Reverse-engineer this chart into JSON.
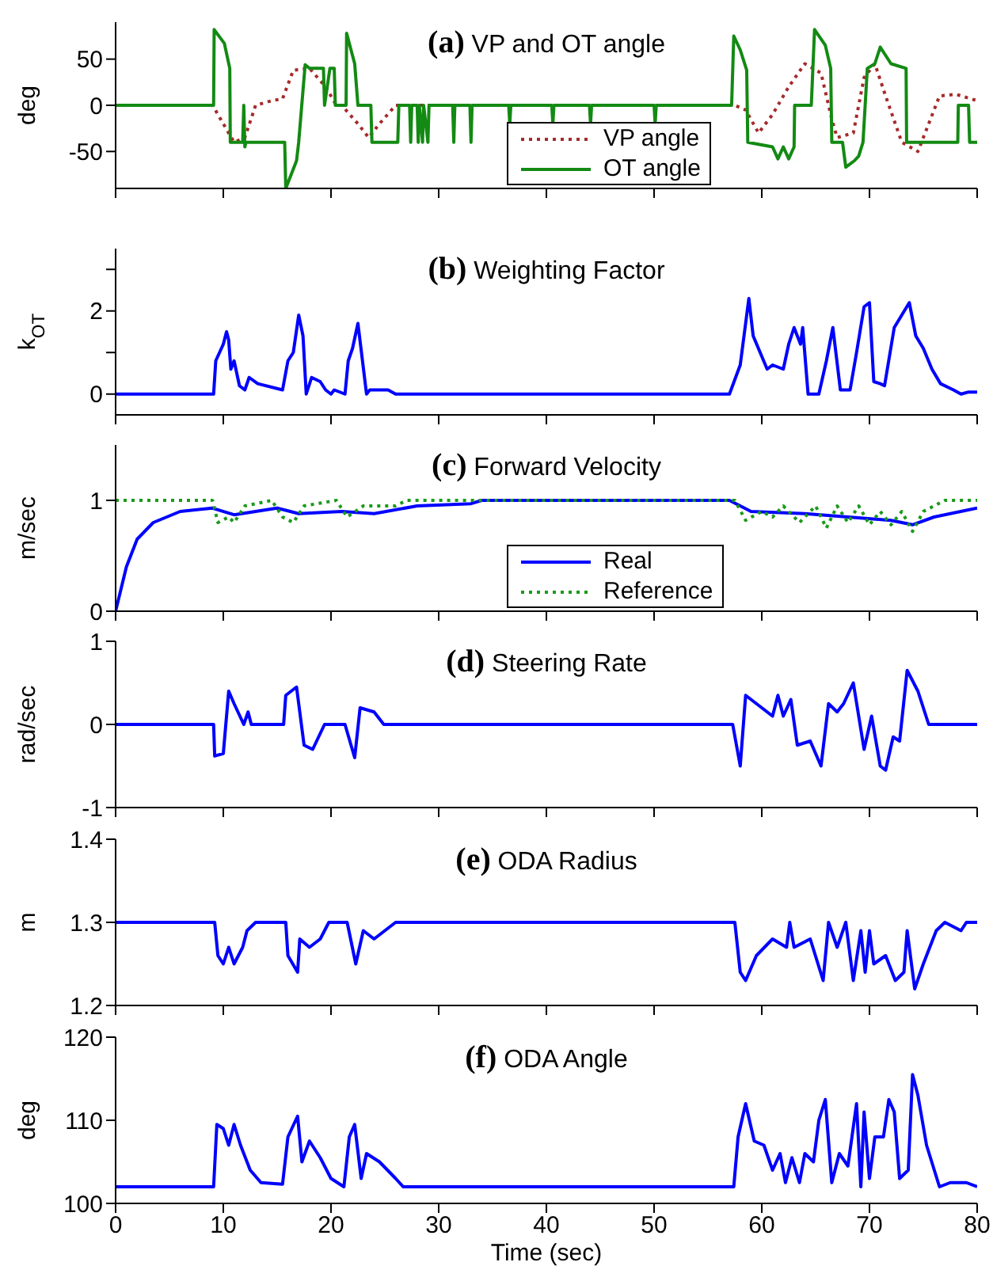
{
  "chart_data": [
    {
      "type": "line",
      "title": "(a) VP and OT angle",
      "ylabel": "deg",
      "xlim": [
        0,
        80
      ],
      "xticks": [
        0,
        10,
        20,
        30,
        40,
        50,
        60,
        70,
        80
      ],
      "ylim": [
        -90,
        90
      ],
      "yticks": [
        -50,
        0,
        50
      ],
      "tick_labels": "y",
      "legend": "bottom",
      "series": [
        {
          "name": "VP angle",
          "color": "#a52a2a",
          "line_style": "dotted",
          "x": [
            0,
            9,
            10,
            11,
            12,
            13,
            14.5,
            15.5,
            16.5,
            18,
            19.5,
            20.5,
            21,
            22.5,
            23.5,
            24.5,
            26,
            57.5,
            58.5,
            59.7,
            61,
            62.5,
            64,
            65.5,
            66.5,
            67,
            68.5,
            69.5,
            70.5,
            71.5,
            73,
            74.5,
            75.5,
            76.5,
            78,
            80
          ],
          "values": [
            0,
            0,
            -20,
            -40,
            -35,
            0,
            5,
            7,
            38,
            40,
            20,
            0,
            0,
            -20,
            -35,
            -20,
            0,
            0,
            -5,
            -30,
            -10,
            20,
            45,
            35,
            -15,
            -35,
            -30,
            30,
            45,
            10,
            -40,
            -50,
            -20,
            10,
            12,
            5
          ]
        },
        {
          "name": "OT angle",
          "color": "#138a13",
          "line_style": "solid",
          "x": [
            0,
            9.1,
            9.15,
            10.1,
            10.6,
            10.65,
            11.8,
            11.9,
            12.0,
            12.1,
            15.7,
            15.8,
            16.8,
            17.0,
            17.6,
            18.0,
            19.3,
            19.4,
            19.9,
            20.3,
            20.4,
            21.4,
            21.45,
            22.2,
            22.5,
            23.7,
            23.8,
            26.2,
            26.3,
            27.3,
            27.4,
            27.5,
            28.0,
            28.1,
            28.2,
            28.5,
            28.6,
            29.0,
            29.1,
            31.3,
            31.4,
            31.5,
            32.9,
            33.0,
            33.1,
            36.5,
            36.6,
            36.7,
            40.5,
            40.6,
            40.7,
            44.0,
            44.1,
            44.2,
            50.0,
            50.1,
            50.2,
            57.2,
            57.4,
            58.0,
            58.6,
            58.7,
            61.0,
            61.5,
            62.0,
            62.5,
            63.0,
            63.05,
            64.6,
            64.9,
            65.9,
            66.4,
            66.5,
            67.5,
            67.8,
            68.6,
            69.0,
            69.4,
            69.8,
            70.5,
            71.0,
            72.0,
            73.4,
            73.45,
            78.2,
            78.25,
            79.2,
            79.3,
            80
          ],
          "values": [
            0,
            0,
            82,
            67,
            40,
            -40,
            -40,
            0,
            -45,
            -40,
            -40,
            -90,
            -60,
            -40,
            44,
            40,
            40,
            0,
            40,
            40,
            0,
            0,
            78,
            45,
            0,
            0,
            -40,
            -40,
            0,
            0,
            -40,
            0,
            0,
            -40,
            0,
            -40,
            0,
            -40,
            0,
            0,
            -40,
            0,
            0,
            -40,
            0,
            0,
            -20,
            0,
            0,
            -20,
            0,
            0,
            -20,
            0,
            0,
            -20,
            0,
            0,
            75,
            60,
            38,
            -40,
            -45,
            -58,
            -45,
            -58,
            -45,
            0,
            0,
            82,
            65,
            40,
            -40,
            -40,
            -67,
            -60,
            -55,
            -40,
            40,
            45,
            63,
            45,
            40,
            -40,
            -40,
            0,
            0,
            -40,
            -40
          ]
        }
      ]
    },
    {
      "type": "line",
      "title": "(b) Weighting Factor",
      "ylabel": "k$_{OT}$",
      "xlim": [
        0,
        80
      ],
      "xticks": [
        0,
        10,
        20,
        30,
        40,
        50,
        60,
        70,
        80
      ],
      "ylim": [
        -0.5,
        3.5
      ],
      "yticks": [
        0,
        {
          "value": 1,
          "label": null
        },
        2,
        {
          "value": 3,
          "label": null
        }
      ],
      "tick_labels": "y",
      "series": [
        {
          "color": "#0000ff",
          "x": [
            0,
            9.1,
            9.3,
            10,
            10.3,
            10.5,
            10.7,
            11,
            11.5,
            12,
            12.4,
            13.2,
            15.5,
            16,
            16.5,
            17,
            17.4,
            17.7,
            18.2,
            19,
            19.5,
            20,
            20.3,
            21.3,
            21.6,
            22,
            22.5,
            23.3,
            23.6,
            25.3,
            26,
            57,
            58,
            58.8,
            59.2,
            60.5,
            61,
            62,
            62.5,
            63,
            63.6,
            63.8,
            64.3,
            65.3,
            66,
            66.6,
            67.3,
            68.2,
            68.8,
            69.5,
            70,
            70.4,
            71,
            71.4,
            72.3,
            73,
            73.7,
            74.3,
            75,
            75.8,
            76.6,
            77.8,
            78.5,
            79.2,
            80
          ],
          "values": [
            0,
            0,
            0.8,
            1.2,
            1.5,
            1.3,
            0.6,
            0.8,
            0.2,
            0.1,
            0.4,
            0.25,
            0.1,
            0.8,
            1,
            1.9,
            1.4,
            0,
            0.4,
            0.3,
            0.1,
            0,
            0.1,
            0,
            0.8,
            1.1,
            1.7,
            0,
            0.1,
            0.1,
            0,
            0,
            0.7,
            2.3,
            1.4,
            0.6,
            0.7,
            0.6,
            1.2,
            1.6,
            1.2,
            1.6,
            0,
            0,
            0.8,
            1.6,
            0.1,
            0.1,
            1,
            2.1,
            2.2,
            0.3,
            0.25,
            0.2,
            1.6,
            1.9,
            2.2,
            1.4,
            1.1,
            0.6,
            0.25,
            0.1,
            0,
            0.05,
            0.05
          ]
        }
      ]
    },
    {
      "type": "line",
      "title": "(c) Forward Velocity",
      "ylabel": "m/sec",
      "xlim": [
        0,
        80
      ],
      "xticks": [
        0,
        10,
        20,
        30,
        40,
        50,
        60,
        70,
        80
      ],
      "ylim": [
        0,
        1.5
      ],
      "yticks": [
        0,
        1
      ],
      "tick_labels": "y",
      "legend": "bottom",
      "series": [
        {
          "name": "Real",
          "color": "#0000ff",
          "line_style": "solid",
          "x": [
            0,
            1,
            2,
            3.5,
            6,
            9,
            11,
            15,
            17,
            21,
            24,
            28,
            33,
            34,
            57,
            59,
            64,
            68,
            72,
            74,
            76,
            80
          ],
          "values": [
            0,
            0.4,
            0.65,
            0.8,
            0.9,
            0.93,
            0.87,
            0.93,
            0.88,
            0.9,
            0.88,
            0.95,
            0.97,
            1,
            1,
            0.9,
            0.88,
            0.85,
            0.82,
            0.78,
            0.85,
            0.93
          ]
        },
        {
          "name": "Reference",
          "color": "#1a9a1a",
          "line_style": "dotted",
          "x": [
            0,
            9,
            9.5,
            10.5,
            11,
            12,
            14.5,
            15.5,
            16.5,
            17.5,
            20.5,
            21.5,
            23,
            26,
            27,
            57.5,
            58.5,
            60,
            61,
            62,
            63.5,
            65,
            66,
            67,
            68,
            69,
            70,
            71,
            72,
            73,
            74,
            75,
            77,
            80
          ],
          "values": [
            1,
            1,
            0.8,
            0.85,
            0.8,
            0.95,
            1,
            0.85,
            0.8,
            0.95,
            1,
            0.85,
            0.95,
            0.95,
            1,
            1,
            0.82,
            0.9,
            0.85,
            0.95,
            0.8,
            0.95,
            0.75,
            0.95,
            0.8,
            0.95,
            0.78,
            0.9,
            0.78,
            0.9,
            0.72,
            0.9,
            1,
            1
          ]
        }
      ]
    },
    {
      "type": "line",
      "title": "(d) Steering Rate",
      "ylabel": "rad/sec",
      "xlim": [
        0,
        80
      ],
      "xticks": [
        0,
        10,
        20,
        30,
        40,
        50,
        60,
        70,
        80
      ],
      "ylim": [
        -1,
        1
      ],
      "yticks": [
        -1,
        0,
        1
      ],
      "tick_labels": "y",
      "series": [
        {
          "color": "#0000ff",
          "x": [
            0,
            9.1,
            9.2,
            10,
            10.5,
            11,
            11.9,
            12.3,
            12.6,
            15.6,
            15.8,
            16.8,
            17.5,
            18.3,
            19.4,
            21.3,
            22.2,
            22.7,
            24,
            24.9,
            57.3,
            58,
            58.5,
            60,
            61,
            61.5,
            62,
            62.7,
            63.3,
            64.5,
            65.5,
            66.2,
            67,
            67.6,
            68.5,
            69.5,
            70.2,
            71,
            71.5,
            72.2,
            72.8,
            73.5,
            74.5,
            75.5,
            80
          ],
          "values": [
            0,
            0,
            -0.38,
            -0.35,
            0.4,
            0.25,
            0,
            0.15,
            0,
            0,
            0.35,
            0.45,
            -0.25,
            -0.3,
            0,
            0,
            -0.4,
            0.2,
            0.15,
            0,
            0,
            -0.5,
            0.35,
            0.2,
            0.1,
            0.35,
            0.1,
            0.3,
            -0.25,
            -0.2,
            -0.5,
            0.25,
            0.15,
            0.25,
            0.5,
            -0.3,
            0.1,
            -0.5,
            -0.55,
            -0.15,
            -0.2,
            0.65,
            0.4,
            0,
            0
          ]
        }
      ]
    },
    {
      "type": "line",
      "title": "(e) ODA Radius",
      "ylabel": "m",
      "xlim": [
        0,
        80
      ],
      "xticks": [
        0,
        10,
        20,
        30,
        40,
        50,
        60,
        70,
        80
      ],
      "ylim": [
        1.2,
        1.4
      ],
      "yticks": [
        1.2,
        1.3,
        1.4
      ],
      "tick_labels": "y",
      "series": [
        {
          "color": "#0000ff",
          "x": [
            0,
            9.2,
            9.5,
            10,
            10.5,
            11,
            11.8,
            12.2,
            13,
            15.8,
            16,
            16.9,
            17.1,
            18,
            19,
            19.8,
            21.5,
            22.3,
            23,
            24,
            25,
            26,
            57.5,
            58,
            58.5,
            59.5,
            61,
            62.3,
            62.6,
            63,
            64.5,
            65.7,
            66.2,
            67,
            67.8,
            68.5,
            69.2,
            69.6,
            70,
            70.4,
            71.5,
            72.4,
            73.2,
            73.5,
            74.2,
            75,
            76.2,
            77,
            78.5,
            79,
            80
          ],
          "values": [
            1.3,
            1.3,
            1.26,
            1.25,
            1.27,
            1.25,
            1.27,
            1.29,
            1.3,
            1.3,
            1.26,
            1.24,
            1.28,
            1.27,
            1.28,
            1.3,
            1.3,
            1.25,
            1.29,
            1.28,
            1.29,
            1.3,
            1.3,
            1.24,
            1.23,
            1.26,
            1.28,
            1.27,
            1.3,
            1.27,
            1.28,
            1.23,
            1.3,
            1.27,
            1.3,
            1.23,
            1.29,
            1.24,
            1.29,
            1.25,
            1.26,
            1.23,
            1.24,
            1.29,
            1.22,
            1.25,
            1.29,
            1.3,
            1.29,
            1.3,
            1.3
          ]
        }
      ]
    },
    {
      "type": "line",
      "title": "(f) ODA Angle",
      "ylabel": "deg",
      "xlabel": "Time (sec)",
      "xlim": [
        0,
        80
      ],
      "xticks": [
        0,
        10,
        20,
        30,
        40,
        50,
        60,
        70,
        80
      ],
      "ylim": [
        100,
        120
      ],
      "yticks": [
        100,
        110,
        120
      ],
      "series": [
        {
          "color": "#0000ff",
          "x": [
            0,
            9.1,
            9.4,
            10,
            10.5,
            11,
            11.6,
            12.5,
            13.5,
            15.5,
            16,
            16.9,
            17.3,
            18,
            19,
            20,
            21.2,
            21.7,
            22.2,
            22.8,
            23.3,
            24.5,
            26,
            26.7,
            57.4,
            57.8,
            58.5,
            59.3,
            60.2,
            61,
            61.7,
            62.2,
            62.8,
            63.5,
            64,
            64.8,
            65.3,
            65.9,
            66.5,
            67.2,
            68,
            68.8,
            69.2,
            69.5,
            70,
            70.5,
            71.3,
            71.8,
            72.3,
            72.8,
            73.6,
            74,
            74.5,
            75.3,
            76.5,
            77.5,
            79,
            80
          ],
          "values": [
            102,
            102,
            109.5,
            109,
            107,
            109.5,
            107,
            104,
            102.5,
            102.3,
            108,
            110.5,
            105,
            107.5,
            105.5,
            103,
            102,
            108,
            109.5,
            103,
            106,
            105,
            103,
            102,
            102,
            108,
            112,
            107.5,
            107,
            104,
            106,
            102.5,
            105.5,
            102.5,
            106,
            105,
            110,
            112.5,
            102.5,
            106,
            104.5,
            112,
            102,
            111,
            103,
            108,
            108,
            112.5,
            111,
            103,
            104,
            115.5,
            113,
            107,
            102,
            102.5,
            102.5,
            102
          ]
        }
      ]
    }
  ]
}
